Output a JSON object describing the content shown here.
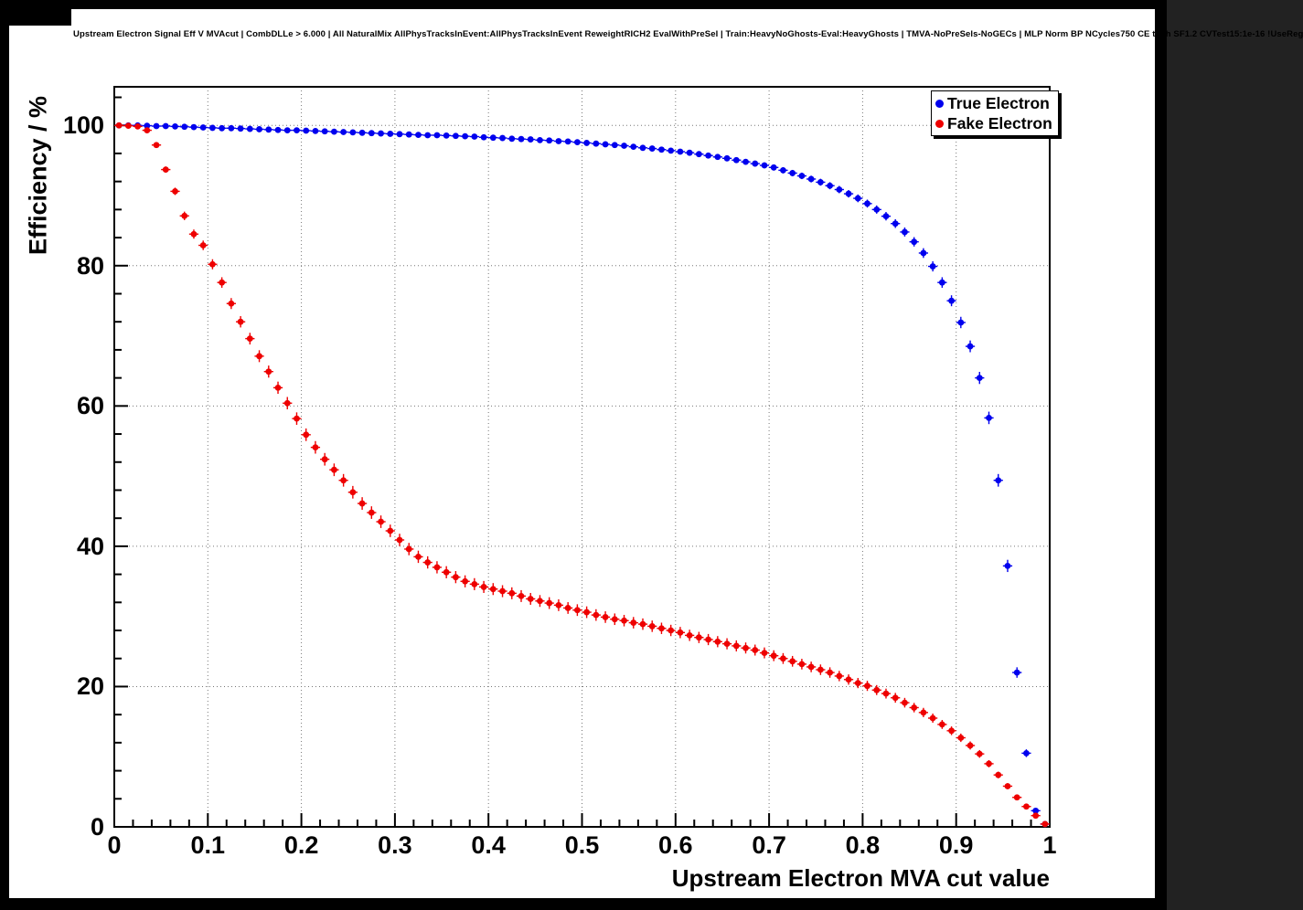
{
  "chart_data": {
    "type": "scatter",
    "title": "Upstream Electron Signal Eff V MVAcut | CombDLLe > 6.000 | All NaturalMix AllPhysTracksInEvent:AllPhysTracksInEvent ReweightRICH2 EvalWithPreSel | Train:HeavyNoGhosts-Eval:HeavyGhosts | TMVA-NoPreSels-NoGECs | MLP Norm BP NCycles750 CE tanh SF1.2 CVTest15:1e-16 !UseReg",
    "xlabel": "Upstream Electron MVA cut value",
    "ylabel": "Efficiency / %",
    "xlim": [
      0,
      1
    ],
    "ylim": [
      0,
      105.5
    ],
    "x_tick_values": [
      0,
      0.1,
      0.2,
      0.3,
      0.4,
      0.5,
      0.6,
      0.7,
      0.8,
      0.9,
      1
    ],
    "x_tick_labels": [
      "0",
      "0.1",
      "0.2",
      "0.3",
      "0.4",
      "0.5",
      "0.6",
      "0.7",
      "0.8",
      "0.9",
      "1"
    ],
    "y_tick_values": [
      0,
      20,
      40,
      60,
      80,
      100
    ],
    "y_tick_labels": [
      "0",
      "20",
      "40",
      "60",
      "80",
      "100"
    ],
    "grid": "dotted",
    "legend_position": "top-right",
    "marker_style": "filled-circle",
    "x": [
      0.005,
      0.015,
      0.025,
      0.035,
      0.045,
      0.055,
      0.065,
      0.075,
      0.085,
      0.095,
      0.105,
      0.115,
      0.125,
      0.135,
      0.145,
      0.155,
      0.165,
      0.175,
      0.185,
      0.195,
      0.205,
      0.215,
      0.225,
      0.235,
      0.245,
      0.255,
      0.265,
      0.275,
      0.285,
      0.295,
      0.305,
      0.315,
      0.325,
      0.335,
      0.345,
      0.355,
      0.365,
      0.375,
      0.385,
      0.395,
      0.405,
      0.415,
      0.425,
      0.435,
      0.445,
      0.455,
      0.465,
      0.475,
      0.485,
      0.495,
      0.505,
      0.515,
      0.525,
      0.535,
      0.545,
      0.555,
      0.565,
      0.575,
      0.585,
      0.595,
      0.605,
      0.615,
      0.625,
      0.635,
      0.645,
      0.655,
      0.665,
      0.675,
      0.685,
      0.695,
      0.705,
      0.715,
      0.725,
      0.735,
      0.745,
      0.755,
      0.765,
      0.775,
      0.785,
      0.795,
      0.805,
      0.815,
      0.825,
      0.835,
      0.845,
      0.855,
      0.865,
      0.875,
      0.885,
      0.895,
      0.905,
      0.915,
      0.925,
      0.935,
      0.945,
      0.955,
      0.965,
      0.975,
      0.985,
      0.995
    ],
    "series": [
      {
        "name": "True Electron",
        "color": "#0000ee",
        "y": [
          100,
          100,
          100,
          99.95,
          99.9,
          99.9,
          99.85,
          99.8,
          99.75,
          99.7,
          99.65,
          99.6,
          99.6,
          99.55,
          99.5,
          99.45,
          99.4,
          99.35,
          99.3,
          99.3,
          99.25,
          99.2,
          99.15,
          99.1,
          99.05,
          99,
          98.95,
          98.9,
          98.85,
          98.8,
          98.75,
          98.7,
          98.65,
          98.6,
          98.6,
          98.55,
          98.5,
          98.45,
          98.4,
          98.3,
          98.25,
          98.2,
          98.1,
          98.05,
          98,
          97.9,
          97.85,
          97.75,
          97.7,
          97.6,
          97.5,
          97.4,
          97.3,
          97.2,
          97.1,
          96.95,
          96.8,
          96.7,
          96.55,
          96.4,
          96.25,
          96.1,
          95.9,
          95.7,
          95.5,
          95.3,
          95.05,
          94.8,
          94.55,
          94.3,
          94,
          93.6,
          93.2,
          92.8,
          92.35,
          91.9,
          91.4,
          90.85,
          90.25,
          89.6,
          88.85,
          88,
          87.05,
          86,
          84.8,
          83.4,
          81.8,
          79.9,
          77.6,
          75,
          71.9,
          68.5,
          64,
          58.3,
          49.4,
          37.2,
          22,
          10.5,
          2.3,
          0.4
        ]
      },
      {
        "name": "Fake Electron",
        "color": "#ee0000",
        "y": [
          100,
          99.95,
          99.85,
          99.3,
          97.2,
          93.7,
          90.6,
          87.1,
          84.5,
          82.9,
          80.2,
          77.6,
          74.6,
          72,
          69.6,
          67.1,
          64.9,
          62.6,
          60.4,
          58.2,
          55.9,
          54.1,
          52.4,
          50.9,
          49.4,
          47.7,
          46.1,
          44.8,
          43.5,
          42.2,
          40.9,
          39.6,
          38.5,
          37.7,
          37,
          36.3,
          35.6,
          35,
          34.6,
          34.2,
          33.9,
          33.6,
          33.3,
          32.9,
          32.5,
          32.2,
          31.9,
          31.6,
          31.2,
          30.9,
          30.6,
          30.2,
          29.9,
          29.6,
          29.4,
          29.1,
          28.9,
          28.6,
          28.3,
          28,
          27.7,
          27.3,
          27,
          26.7,
          26.4,
          26.1,
          25.8,
          25.5,
          25.2,
          24.8,
          24.4,
          24,
          23.6,
          23.2,
          22.8,
          22.4,
          22,
          21.5,
          21,
          20.5,
          20.1,
          19.5,
          19,
          18.4,
          17.7,
          17,
          16.3,
          15.5,
          14.6,
          13.7,
          12.7,
          11.6,
          10.4,
          9,
          7.4,
          5.8,
          4.2,
          2.9,
          1.6,
          0.4
        ]
      }
    ]
  }
}
